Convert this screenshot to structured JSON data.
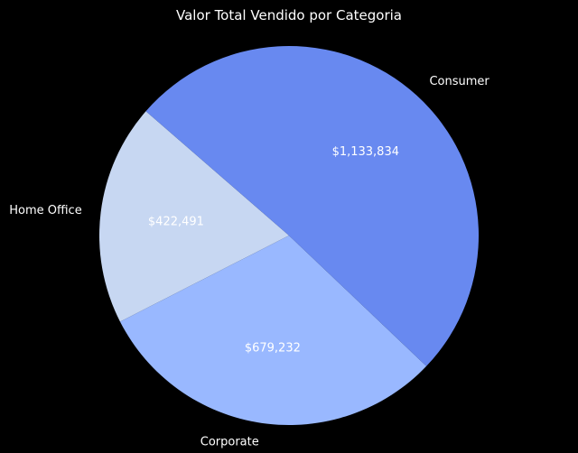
{
  "chart_data": {
    "type": "pie",
    "title": "Valor Total Vendido por Categoria",
    "categories": [
      "Home Office",
      "Corporate",
      "Consumer"
    ],
    "values": [
      422491,
      679232,
      1133834
    ],
    "value_labels": [
      "$422,491",
      "$679,232",
      "$1,133,834"
    ],
    "colors": [
      "#c7d7f2",
      "#99b8ff",
      "#6889f0"
    ],
    "start_angle_deg": 139,
    "direction": "counterclockwise",
    "legend": "none"
  }
}
